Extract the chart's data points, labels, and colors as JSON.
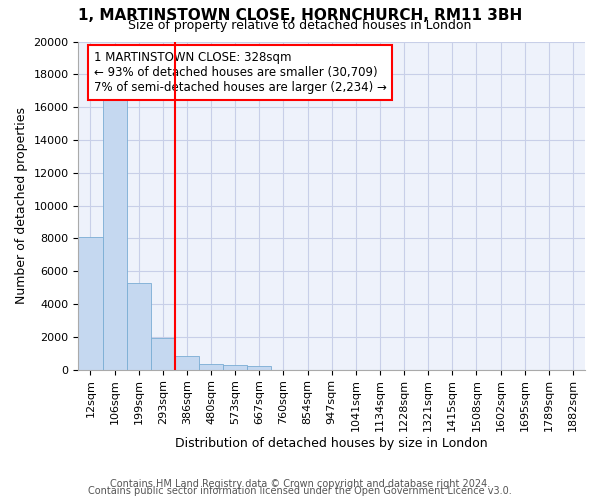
{
  "title1": "1, MARTINSTOWN CLOSE, HORNCHURCH, RM11 3BH",
  "title2": "Size of property relative to detached houses in London",
  "xlabel": "Distribution of detached houses by size in London",
  "ylabel": "Number of detached properties",
  "bar_labels": [
    "12sqm",
    "106sqm",
    "199sqm",
    "293sqm",
    "386sqm",
    "480sqm",
    "573sqm",
    "667sqm",
    "760sqm",
    "854sqm",
    "947sqm",
    "1041sqm",
    "1134sqm",
    "1228sqm",
    "1321sqm",
    "1415sqm",
    "1508sqm",
    "1602sqm",
    "1695sqm",
    "1789sqm",
    "1882sqm"
  ],
  "bar_values": [
    8100,
    16600,
    5300,
    1900,
    800,
    350,
    250,
    200,
    0,
    0,
    0,
    0,
    0,
    0,
    0,
    0,
    0,
    0,
    0,
    0,
    0
  ],
  "bar_color": "#c5d8f0",
  "bar_edge_color": "#7aadd4",
  "property_line_x": 3.5,
  "property_line_color": "red",
  "annotation_box_text": "1 MARTINSTOWN CLOSE: 328sqm\n← 93% of detached houses are smaller (30,709)\n7% of semi-detached houses are larger (2,234) →",
  "ylim": [
    0,
    20000
  ],
  "yticks": [
    0,
    2000,
    4000,
    6000,
    8000,
    10000,
    12000,
    14000,
    16000,
    18000,
    20000
  ],
  "footnote1": "Contains HM Land Registry data © Crown copyright and database right 2024.",
  "footnote2": "Contains public sector information licensed under the Open Government Licence v3.0.",
  "background_color": "#eef2fb",
  "grid_color": "#c8cfe8",
  "title_fontsize": 11,
  "subtitle_fontsize": 9,
  "axis_label_fontsize": 9,
  "tick_fontsize": 8,
  "annotation_fontsize": 8.5,
  "footnote_fontsize": 7
}
